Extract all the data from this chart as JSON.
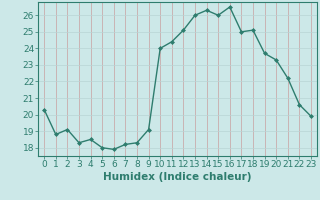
{
  "x": [
    0,
    1,
    2,
    3,
    4,
    5,
    6,
    7,
    8,
    9,
    10,
    11,
    12,
    13,
    14,
    15,
    16,
    17,
    18,
    19,
    20,
    21,
    22,
    23
  ],
  "y": [
    20.3,
    18.8,
    19.1,
    18.3,
    18.5,
    18.0,
    17.9,
    18.2,
    18.3,
    19.1,
    24.0,
    24.4,
    25.1,
    26.0,
    26.3,
    26.0,
    26.5,
    25.0,
    25.1,
    23.7,
    23.3,
    22.2,
    20.6,
    19.9
  ],
  "line_color": "#2E7D6E",
  "marker": "D",
  "marker_size": 2.0,
  "line_width": 1.0,
  "bg_color": "#CCE8E8",
  "grid_color": "#B8D4D4",
  "xlabel": "Humidex (Indice chaleur)",
  "ylabel": "",
  "title": "",
  "xlim": [
    -0.5,
    23.5
  ],
  "ylim": [
    17.5,
    26.8
  ],
  "yticks": [
    18,
    19,
    20,
    21,
    22,
    23,
    24,
    25,
    26
  ],
  "xticks": [
    0,
    1,
    2,
    3,
    4,
    5,
    6,
    7,
    8,
    9,
    10,
    11,
    12,
    13,
    14,
    15,
    16,
    17,
    18,
    19,
    20,
    21,
    22,
    23
  ],
  "xlabel_fontsize": 7.5,
  "tick_fontsize": 6.5
}
